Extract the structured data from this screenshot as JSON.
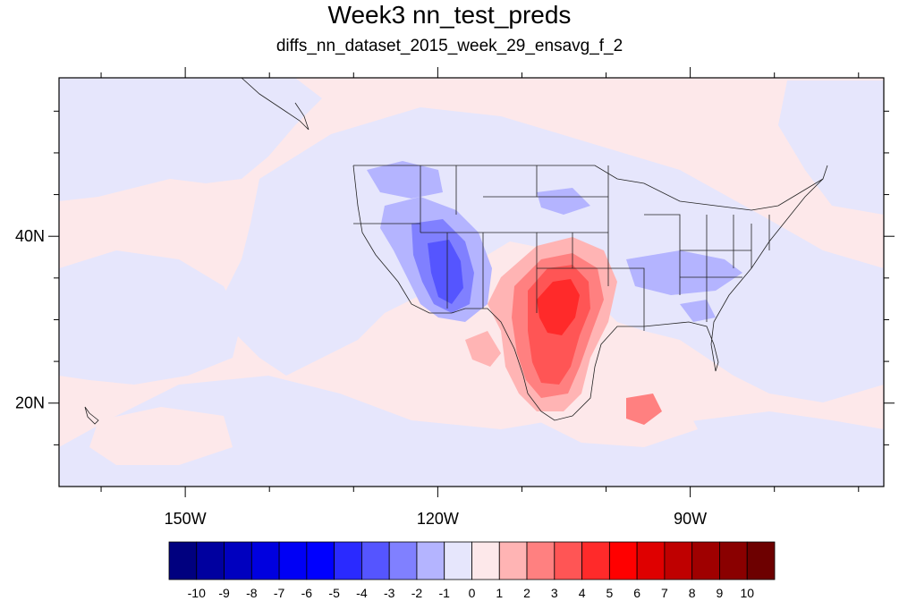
{
  "title": "Week3 nn_test_preds",
  "subtitle": "diffs_nn_dataset_2015_week_29_ensavg_f_2",
  "map": {
    "lon_range": [
      -165,
      -67
    ],
    "lat_range": [
      10,
      59
    ],
    "lon_ticks": [
      {
        "lon": -150,
        "label": "150W"
      },
      {
        "lon": -120,
        "label": "120W"
      },
      {
        "lon": -90,
        "label": "90W"
      }
    ],
    "lat_ticks": [
      {
        "lat": 40,
        "label": "40N"
      },
      {
        "lat": 20,
        "label": "20N"
      }
    ],
    "background_color": "#fde8ea"
  },
  "colorbar": {
    "labels": [
      "-10",
      "-9",
      "-8",
      "-7",
      "-6",
      "-5",
      "-4",
      "-3",
      "-2",
      "-1",
      "0",
      "1",
      "2",
      "3",
      "4",
      "5",
      "6",
      "7",
      "8",
      "9",
      "10"
    ],
    "colors": [
      "#00007f",
      "#00009f",
      "#0000bf",
      "#0000df",
      "#0000f5",
      "#0000ff",
      "#2a2aff",
      "#5555ff",
      "#8080ff",
      "#b4b4ff",
      "#e6e6fc",
      "#fde8ea",
      "#ffb4b4",
      "#ff8080",
      "#ff5555",
      "#ff2a2a",
      "#ff0000",
      "#df0000",
      "#bf0000",
      "#9f0000",
      "#8a0000",
      "#6d0000"
    ]
  },
  "chart_data": {
    "type": "heatmap",
    "title": "Week3 nn_test_preds",
    "subtitle": "diffs_nn_dataset_2015_week_29_ensavg_f_2",
    "x_axis": {
      "ticks": [
        "150W",
        "120W",
        "90W"
      ],
      "range_lon": [
        -165,
        -67
      ]
    },
    "y_axis": {
      "ticks": [
        "40N",
        "20N"
      ],
      "range_lat": [
        10,
        59
      ]
    },
    "color_levels": [
      -10,
      -9,
      -8,
      -7,
      -6,
      -5,
      -4,
      -3,
      -2,
      -1,
      0,
      1,
      2,
      3,
      4,
      5,
      6,
      7,
      8,
      9,
      10
    ]
  }
}
